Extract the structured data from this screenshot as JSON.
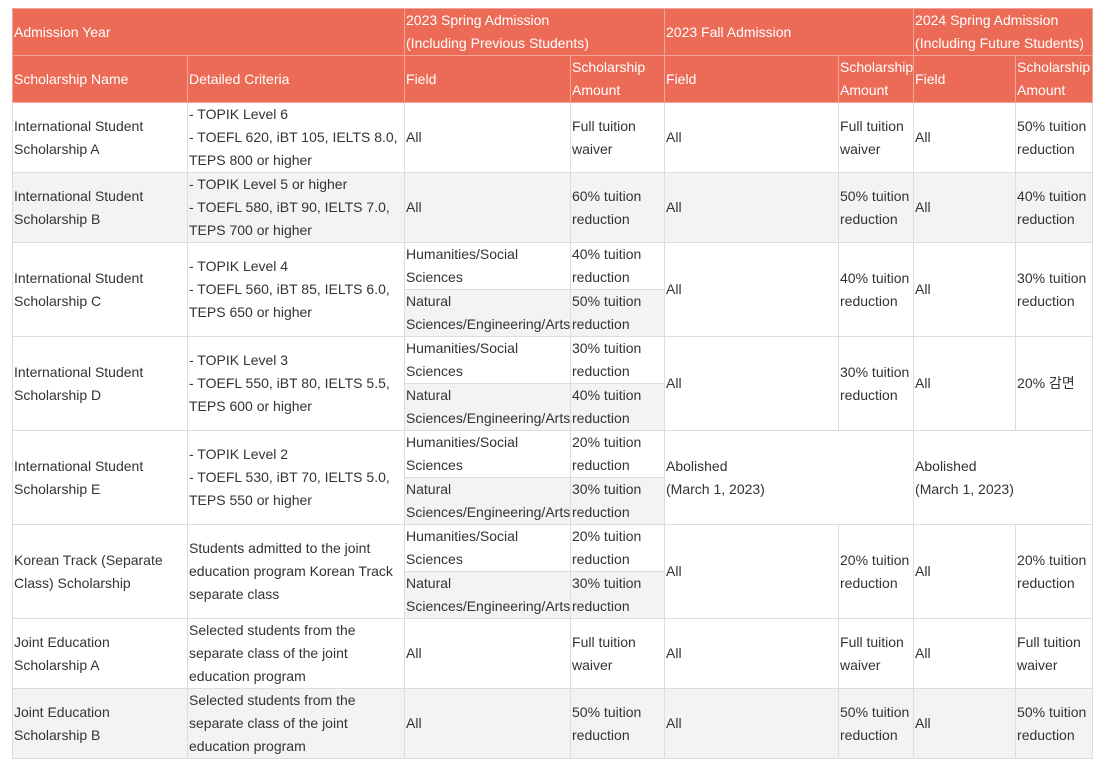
{
  "table": {
    "header": {
      "group_row": [
        "Admission Year",
        "2023 Spring Admission\n(Including Previous Students)",
        "2023 Fall Admission",
        "2024 Spring Admission\n(Including Future Students)"
      ],
      "column_row": [
        "Scholarship Name",
        "Detailed Criteria",
        "Field",
        "Scholarship Amount",
        "Field",
        "Scholarship Amount",
        "Field",
        "Scholarship Amount"
      ]
    },
    "rows": [
      {
        "name": "International Student Scholarship A",
        "criteria": "- TOPIK Level 6\n- TOEFL 620, iBT 105, IELTS 8.0, TEPS 800 or higher",
        "spring_2023": [
          {
            "field": "All",
            "amount": "Full tuition waiver"
          }
        ],
        "fall_2023": {
          "field": "All",
          "amount": "Full tuition waiver"
        },
        "spring_2024": {
          "field": "All",
          "amount": "50% tuition reduction"
        }
      },
      {
        "name": "International Student Scholarship B",
        "criteria": "- TOPIK Level 5 or higher\n- TOEFL 580, iBT 90, IELTS 7.0, TEPS 700 or higher",
        "spring_2023": [
          {
            "field": "All",
            "amount": "60% tuition reduction"
          }
        ],
        "fall_2023": {
          "field": "All",
          "amount": "50% tuition reduction"
        },
        "spring_2024": {
          "field": "All",
          "amount": "40% tuition reduction"
        }
      },
      {
        "name": "International Student Scholarship C",
        "criteria": "- TOPIK Level 4\n- TOEFL 560, iBT 85, IELTS 6.0, TEPS 650 or higher",
        "spring_2023": [
          {
            "field": "Humanities/Social Sciences",
            "amount": "40% tuition reduction"
          },
          {
            "field": "Natural Sciences/Engineering/Arts",
            "amount": "50% tuition reduction"
          }
        ],
        "fall_2023": {
          "field": "All",
          "amount": "40% tuition reduction"
        },
        "spring_2024": {
          "field": "All",
          "amount": "30% tuition reduction"
        }
      },
      {
        "name": "International Student Scholarship D",
        "criteria": "- TOPIK Level 3\n- TOEFL 550, iBT 80, IELTS 5.5, TEPS 600 or higher",
        "spring_2023": [
          {
            "field": "Humanities/Social Sciences",
            "amount": "30% tuition reduction"
          },
          {
            "field": "Natural Sciences/Engineering/Arts",
            "amount": "40% tuition reduction"
          }
        ],
        "fall_2023": {
          "field": "All",
          "amount": "30% tuition reduction"
        },
        "spring_2024": {
          "field": "All",
          "amount": "20% 감면"
        }
      },
      {
        "name": "International Student Scholarship E",
        "criteria": "- TOPIK Level 2\n- TOEFL 530, iBT 70, IELTS 5.0, TEPS 550 or higher",
        "spring_2023": [
          {
            "field": "Humanities/Social Sciences",
            "amount": "20% tuition reduction"
          },
          {
            "field": "Natural Sciences/Engineering/Arts",
            "amount": "30% tuition reduction"
          }
        ],
        "fall_2023": {
          "note": "Abolished\n(March 1, 2023)"
        },
        "spring_2024": {
          "note": "Abolished\n(March 1, 2023)"
        }
      },
      {
        "name": "Korean Track (Separate Class) Scholarship",
        "criteria": "Students admitted to the joint education program Korean Track separate class",
        "spring_2023": [
          {
            "field": "Humanities/Social Sciences",
            "amount": "20% tuition reduction"
          },
          {
            "field": "Natural Sciences/Engineering/Arts",
            "amount": "30% tuition reduction"
          }
        ],
        "fall_2023": {
          "field": "All",
          "amount": "20% tuition reduction"
        },
        "spring_2024": {
          "field": "All",
          "amount": "20% tuition reduction"
        }
      },
      {
        "name": "Joint Education Scholarship A",
        "criteria": "Selected students from the separate class of the joint education program",
        "spring_2023": [
          {
            "field": "All",
            "amount": "Full tuition waiver"
          }
        ],
        "fall_2023": {
          "field": "All",
          "amount": "Full tuition waiver"
        },
        "spring_2024": {
          "field": "All",
          "amount": "Full tuition waiver"
        }
      },
      {
        "name": "Joint Education Scholarship B",
        "criteria": "Selected students from the separate class of the joint education program",
        "spring_2023": [
          {
            "field": "All",
            "amount": "50% tuition reduction"
          }
        ],
        "fall_2023": {
          "field": "All",
          "amount": "50% tuition reduction"
        },
        "spring_2024": {
          "field": "All",
          "amount": "50% tuition reduction"
        }
      }
    ]
  }
}
